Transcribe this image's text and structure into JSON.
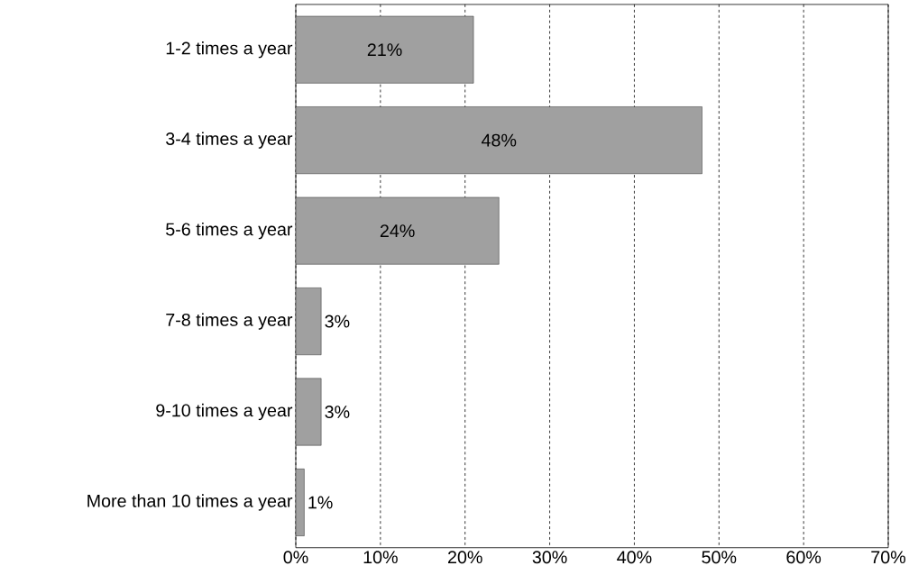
{
  "chart_data": {
    "type": "bar",
    "orientation": "horizontal",
    "categories": [
      "1-2 times a year",
      "3-4 times a year",
      "5-6 times a year",
      "7-8 times a year",
      "9-10 times a year",
      "More than 10 times a year"
    ],
    "values": [
      21,
      48,
      24,
      3,
      3,
      1
    ],
    "value_labels": [
      "21%",
      "48%",
      "24%",
      "3%",
      "3%",
      "1%"
    ],
    "color": "#a0a0a0",
    "xlim": [
      0,
      70
    ],
    "xticks": [
      {
        "value": 0,
        "label": "0%"
      },
      {
        "value": 10,
        "label": "10%"
      },
      {
        "value": 20,
        "label": "20%"
      },
      {
        "value": 30,
        "label": "30%"
      },
      {
        "value": 40,
        "label": "40%"
      },
      {
        "value": 50,
        "label": "50%"
      },
      {
        "value": 60,
        "label": "60%"
      },
      {
        "value": 70,
        "label": "70%"
      }
    ],
    "grid": "x"
  }
}
